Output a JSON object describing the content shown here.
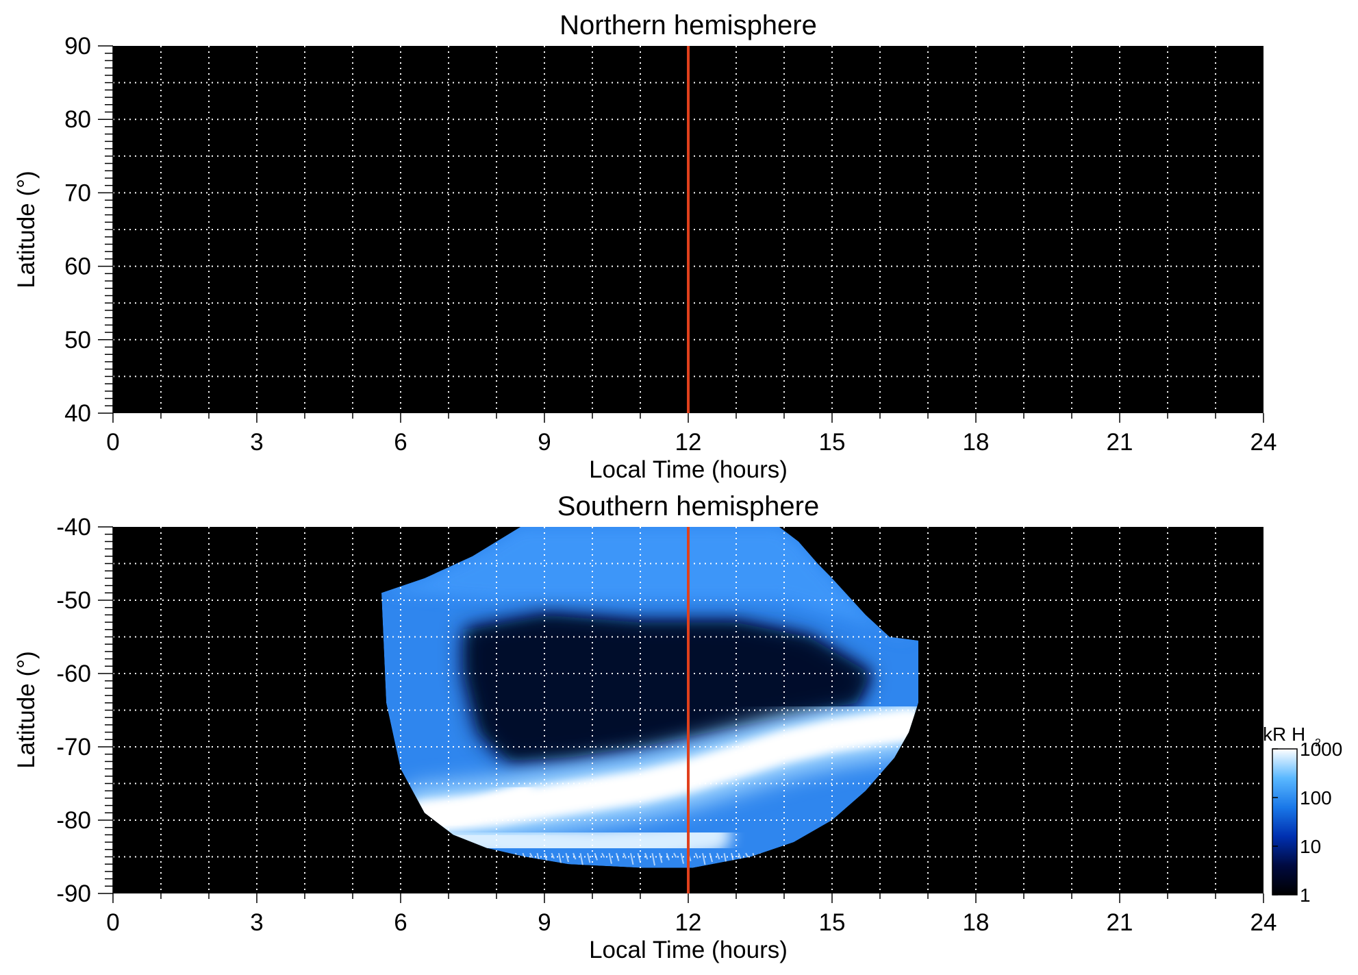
{
  "chart_data": [
    {
      "type": "heatmap",
      "title": "Northern hemisphere",
      "xlabel": "Local Time (hours)",
      "ylabel": "Latitude (°)",
      "xlim": [
        0,
        24
      ],
      "ylim": [
        40,
        90
      ],
      "xticks": [
        0,
        3,
        6,
        9,
        12,
        15,
        18,
        21,
        24
      ],
      "yticks": [
        40,
        50,
        60,
        70,
        80,
        90
      ],
      "grid": true,
      "background": "#000000",
      "noon_line": {
        "x": 12,
        "color": "#e0401c"
      },
      "emission": []
    },
    {
      "type": "heatmap",
      "title": "Southern hemisphere",
      "xlabel": "Local Time (hours)",
      "ylabel": "Latitude (°)",
      "xlim": [
        0,
        24
      ],
      "ylim": [
        -90,
        -40
      ],
      "xticks": [
        0,
        3,
        6,
        9,
        12,
        15,
        18,
        21,
        24
      ],
      "yticks": [
        -90,
        -80,
        -70,
        -60,
        -50,
        -40
      ],
      "grid": true,
      "background": "#000000",
      "noon_line": {
        "x": 12,
        "color": "#e0401c"
      },
      "coverage_region": {
        "top_edge": [
          [
            5.6,
            -49
          ],
          [
            6.5,
            -47
          ],
          [
            7.5,
            -44
          ],
          [
            8.5,
            -40
          ],
          [
            13.9,
            -40
          ],
          [
            14.3,
            -42
          ],
          [
            14.7,
            -45
          ],
          [
            15.0,
            -47
          ],
          [
            15.7,
            -52
          ],
          [
            16.2,
            -55
          ],
          [
            16.8,
            -55.5
          ]
        ],
        "bottom_edge": [
          [
            16.8,
            -55.5
          ],
          [
            16.8,
            -64
          ],
          [
            16.6,
            -68
          ],
          [
            16.3,
            -71.5
          ],
          [
            15.7,
            -76
          ],
          [
            15.0,
            -80
          ],
          [
            14.2,
            -83
          ],
          [
            13.3,
            -85
          ],
          [
            12.1,
            -86.5
          ],
          [
            11,
            -86.5
          ],
          [
            9.5,
            -86
          ],
          [
            8.6,
            -85
          ],
          [
            7.8,
            -83.8
          ],
          [
            7.1,
            -82
          ],
          [
            6.5,
            -79
          ],
          [
            6.0,
            -73
          ],
          [
            5.7,
            -64
          ],
          [
            5.6,
            -49
          ]
        ],
        "level_kR": 100
      },
      "dim_region": {
        "outline": [
          [
            7.3,
            -54
          ],
          [
            9,
            -52
          ],
          [
            11,
            -53
          ],
          [
            13,
            -53
          ],
          [
            14.5,
            -55
          ],
          [
            15.8,
            -60
          ],
          [
            15.5,
            -64
          ],
          [
            13.2,
            -67
          ],
          [
            11,
            -70
          ],
          [
            9.5,
            -71.5
          ],
          [
            8.2,
            -72
          ],
          [
            7.6,
            -68
          ],
          [
            7.3,
            -60
          ],
          [
            7.3,
            -54
          ]
        ],
        "level_kR": 5
      },
      "main_oval": {
        "points": [
          [
            6.5,
            -79.5
          ],
          [
            8,
            -78.5
          ],
          [
            9,
            -77.5
          ],
          [
            10,
            -76.5
          ],
          [
            11,
            -75.5
          ],
          [
            12,
            -74
          ],
          [
            13,
            -72
          ],
          [
            14,
            -70
          ],
          [
            15,
            -68.5
          ],
          [
            16,
            -67.5
          ],
          [
            16.6,
            -67
          ]
        ],
        "level_kR": 1000
      },
      "secondary_arc": {
        "points": [
          [
            6.7,
            -80
          ],
          [
            7.4,
            -79
          ],
          [
            8.0,
            -77.5
          ],
          [
            8.6,
            -76.3
          ]
        ],
        "level_kR": 1000
      },
      "low_latitude_band": {
        "points": [
          [
            7,
            -82
          ],
          [
            8.5,
            -83
          ],
          [
            10,
            -83.5
          ],
          [
            11.5,
            -83
          ],
          [
            12.5,
            -82
          ]
        ],
        "level_kR": 1000
      },
      "colorbar": {
        "label": "kR H",
        "label_subscript": "2",
        "scale": "log",
        "range": [
          1,
          1000
        ],
        "ticks": [
          "1",
          "10",
          "100",
          "1000"
        ],
        "colors": [
          "#000000",
          "#000a40",
          "#0030b0",
          "#1a78e8",
          "#5ab8ff",
          "#ffffff"
        ]
      }
    }
  ]
}
